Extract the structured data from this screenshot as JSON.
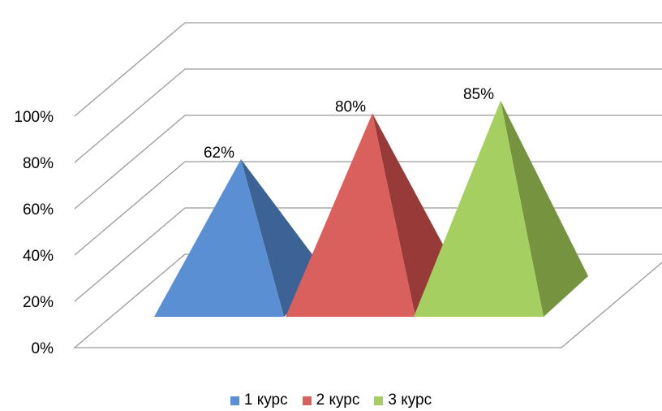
{
  "chart_data": {
    "type": "bar",
    "shape": "pyramid-3d",
    "categories": [
      "1 курс",
      "2 курс",
      "3 курс"
    ],
    "values": [
      62,
      80,
      85
    ],
    "data_labels": [
      "62%",
      "80%",
      "85%"
    ],
    "ylim": [
      0,
      100
    ],
    "yticks": [
      "0%",
      "20%",
      "40%",
      "60%",
      "80%",
      "100%"
    ],
    "grid": true,
    "legend": "bottom",
    "colors": [
      "#5B8FD4",
      "#D9605D",
      "#A6CF62"
    ],
    "shade_colors": [
      "#3D6296",
      "#983A38",
      "#76943F"
    ]
  }
}
